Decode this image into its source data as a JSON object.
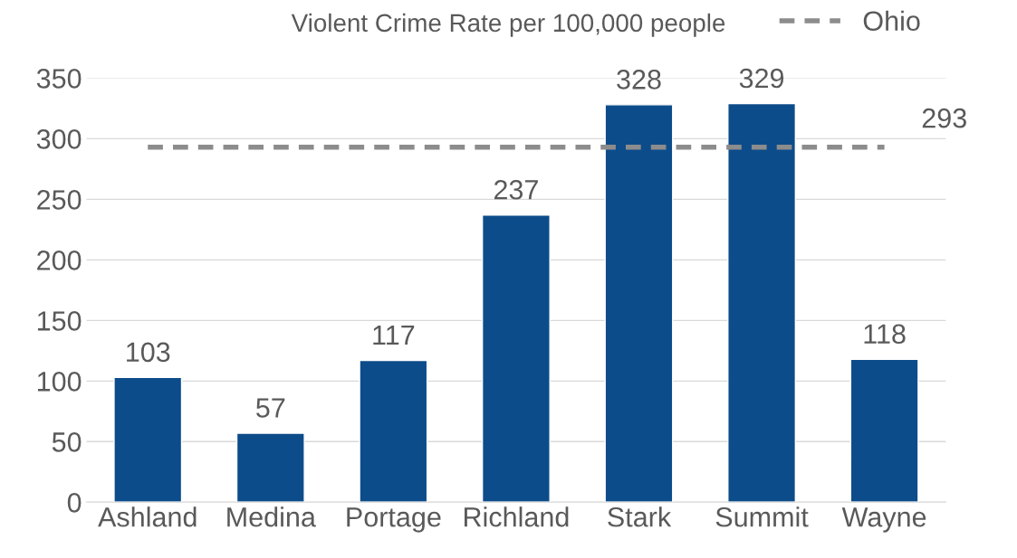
{
  "chart_data": {
    "type": "bar",
    "title": "Violent Crime Rate per 100,000 people",
    "categories": [
      "Ashland",
      "Medina",
      "Portage",
      "Richland",
      "Stark",
      "Summit",
      "Wayne"
    ],
    "series": [
      {
        "color": "#0d4c8a",
        "values": [
          103,
          57,
          117,
          237,
          328,
          329,
          118
        ],
        "value_labels": [
          "103",
          "57",
          "117",
          "237",
          "328",
          "329",
          "118"
        ]
      },
      {
        "type": "line",
        "name": "Ohio",
        "color": "#8c8c8c",
        "line_style": "dashed",
        "values": [
          293,
          293,
          293,
          293,
          293,
          293,
          293
        ],
        "value_labels": [
          null,
          null,
          null,
          null,
          null,
          null,
          "293"
        ]
      }
    ],
    "ylim": [
      0,
      350
    ],
    "yticks": [
      0,
      50,
      100,
      150,
      200,
      250,
      300,
      350
    ],
    "grid": "y",
    "legend": "top right"
  }
}
